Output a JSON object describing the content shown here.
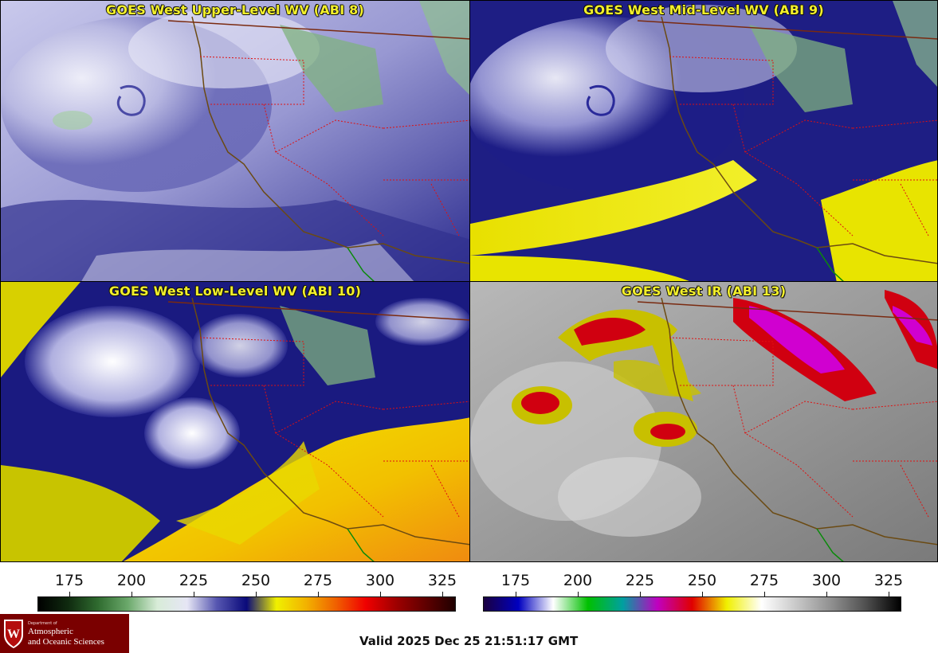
{
  "panels": [
    {
      "title": "GOES West Upper-Level WV (ABI 8)"
    },
    {
      "title": "GOES West Mid-Level WV (ABI 9)"
    },
    {
      "title": "GOES West Low-Level WV (ABI 10)"
    },
    {
      "title": "GOES West IR (ABI 13)"
    }
  ],
  "colorbars": {
    "wv": {
      "ticks": [
        "175",
        "200",
        "225",
        "250",
        "275",
        "300",
        "325"
      ],
      "stops": [
        "#000000",
        "#0f2a0f",
        "#2f6b2f",
        "#6aa86a",
        "#d8ecd8",
        "#e6e6f5",
        "#5656b0",
        "#0a0a7a",
        "#f0f000",
        "#f2b200",
        "#f06000",
        "#f00000",
        "#a00000",
        "#600000",
        "#200000"
      ]
    },
    "ir": {
      "ticks": [
        "175",
        "200",
        "225",
        "250",
        "275",
        "300",
        "325"
      ],
      "stops": [
        "#1a0040",
        "#0000c0",
        "#ffffff",
        "#00c000",
        "#00a0a0",
        "#c000c0",
        "#e00000",
        "#f0f000",
        "#ffffff",
        "#c8c8c8",
        "#909090",
        "#505050",
        "#000000"
      ]
    }
  },
  "logo": {
    "small": "Department of",
    "line1": "Atmospheric",
    "line2": "and Oceanic Sciences"
  },
  "valid_time": "Valid 2025 Dec 25 21:51:17 GMT",
  "colors": {
    "title_yellow": "#f2ef2a",
    "border_red": "#e01010",
    "coast_brown": "#6b4a12",
    "logo_red": "#7a0000"
  }
}
